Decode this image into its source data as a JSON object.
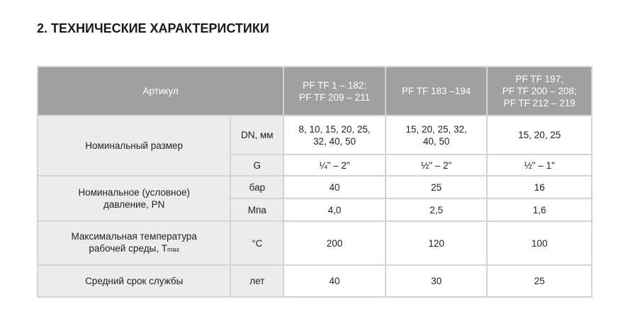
{
  "title": "2. ТЕХНИЧЕСКИЕ ХАРАКТЕРИСТИКИ",
  "header": {
    "article": "Артикул",
    "col1": [
      "PF TF 1 – 182;",
      "PF TF 209 – 211"
    ],
    "col2": "PF TF 183 –194",
    "col3": [
      "PF TF 197;",
      "PF TF 200 – 208;",
      "PF TF 212 – 219"
    ]
  },
  "rows": {
    "size": {
      "label": "Номинальный размер",
      "dn_unit": "DN, мм",
      "dn": [
        [
          "8, 10, 15, 20, 25,",
          "32, 40, 50"
        ],
        [
          "15, 20, 25, 32,",
          "40, 50"
        ],
        "15, 20, 25"
      ],
      "g_unit": "G",
      "g": [
        "¼\" – 2\"",
        "½\" – 2\"",
        "½\" – 1\""
      ]
    },
    "pressure": {
      "label": [
        "Номинальное (условное)",
        "давление, PN"
      ],
      "bar_unit": "бар",
      "bar": [
        "40",
        "25",
        "16"
      ],
      "mpa_unit": "Мпа",
      "mpa": [
        "4,0",
        "2,5",
        "1,6"
      ]
    },
    "temp": {
      "label": [
        "Максимальная температура",
        "рабочей среды, T"
      ],
      "label_sub": "max",
      "unit": "°C",
      "values": [
        "200",
        "120",
        "100"
      ]
    },
    "life": {
      "label": "Средний срок службы",
      "unit": "лет",
      "values": [
        "40",
        "30",
        "25"
      ]
    }
  }
}
